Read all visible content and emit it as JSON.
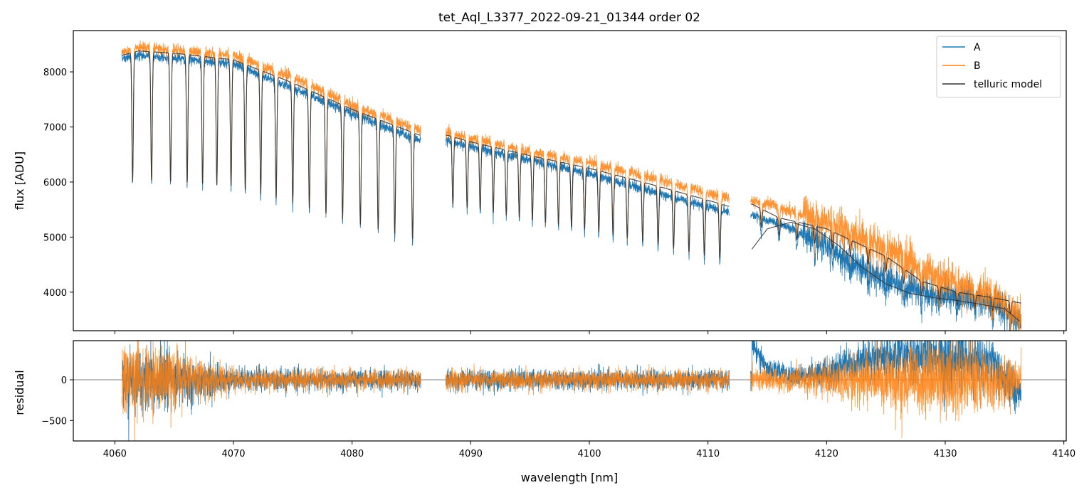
{
  "title": "tet_Aql_L3377_2022-09-21_01344  order 02",
  "colors": {
    "A": "#1f77b4",
    "B": "#ff7f0e",
    "model": "#333333",
    "zero_line": "#555555"
  },
  "legend": {
    "placement": "top-right",
    "entries": [
      "A",
      "B",
      "telluric model"
    ]
  },
  "chart_data": [
    {
      "panel": "top",
      "type": "line",
      "title": "tet_Aql_L3377_2022-09-21_01344  order 02",
      "xlabel": "",
      "ylabel": "flux [ADU]",
      "xlim": [
        4056.5,
        4140.2
      ],
      "ylim": [
        3300,
        8750
      ],
      "y_ticks": [
        4000,
        5000,
        6000,
        7000,
        8000
      ],
      "x_ticks": [
        4060,
        4070,
        4080,
        4090,
        4100,
        4110,
        4120,
        4130,
        4140
      ],
      "grid": false,
      "segments": [
        [
          4060.6,
          4085.8
        ],
        [
          4087.9,
          4111.8
        ],
        [
          4113.6,
          4136.4
        ]
      ],
      "continuum_A": {
        "x": [
          4060.6,
          4062,
          4065,
          4070,
          4075,
          4080,
          4085.7,
          4088,
          4090,
          4095,
          4100,
          4105,
          4110,
          4111.7,
          4113.7,
          4116,
          4118,
          4120,
          4122,
          4125,
          4128,
          4131,
          4134,
          4136.4
        ],
        "y": [
          8250,
          8300,
          8250,
          8150,
          7700,
          7250,
          6750,
          6750,
          6650,
          6400,
          6150,
          5850,
          5550,
          5450,
          5400,
          5250,
          5050,
          4850,
          4550,
          4250,
          4000,
          3900,
          3850,
          3450
        ]
      },
      "continuum_B": {
        "x": [
          4060.6,
          4062,
          4065,
          4070,
          4075,
          4080,
          4085.7,
          4088,
          4090,
          4095,
          4100,
          4105,
          4110,
          4111.7,
          4113.7,
          4116,
          4118,
          4120,
          4122,
          4125,
          4128,
          4131,
          4134,
          4136.4
        ],
        "y": [
          8350,
          8450,
          8400,
          8300,
          7900,
          7400,
          6950,
          6900,
          6800,
          6550,
          6350,
          6100,
          5800,
          5700,
          5650,
          5550,
          5400,
          5300,
          5100,
          4800,
          4400,
          4150,
          3950,
          3500
        ]
      },
      "model": {
        "x": [
          4060.6,
          4062,
          4065,
          4070,
          4075,
          4080,
          4085.7,
          4088,
          4090,
          4095,
          4100,
          4105,
          4110,
          4111.7,
          4113.7,
          4116,
          4118,
          4120,
          4122,
          4125,
          4128,
          4131,
          4134,
          4136.4
        ],
        "y": [
          8300,
          8380,
          8340,
          8220,
          7800,
          7320,
          6850,
          6850,
          6730,
          6480,
          6250,
          5970,
          5670,
          5560,
          5600,
          5350,
          5250,
          5150,
          4950,
          4650,
          4200,
          4000,
          3900,
          3800
        ]
      },
      "absorption_lines_nm": [
        4061.5,
        4063.1,
        4064.7,
        4066.1,
        4067.4,
        4068.6,
        4069.8,
        4071.0,
        4072.3,
        4073.6,
        4075.0,
        4076.4,
        4077.8,
        4079.2,
        4080.7,
        4082.2,
        4083.6,
        4085.1,
        4088.5,
        4089.7,
        4090.8,
        4091.9,
        4093.0,
        4094.1,
        4095.2,
        4096.3,
        4097.4,
        4098.5,
        4099.6,
        4100.8,
        4102.0,
        4103.2,
        4104.5,
        4105.8,
        4107.1,
        4108.4,
        4109.7,
        4111.0,
        4114.5,
        4116.0,
        4117.5,
        4119.0,
        4120.5,
        4122.0,
        4123.5,
        4125.0,
        4126.5,
        4128.0,
        4129.5,
        4131.0,
        4132.5,
        4134.0,
        4135.5
      ],
      "secondary_model": {
        "x": [
          4113.7,
          4115,
          4117,
          4119,
          4121,
          4123,
          4125,
          4127,
          4129,
          4131,
          4133,
          4135,
          4136.4
        ],
        "y": [
          4780,
          5150,
          5270,
          5150,
          4850,
          4450,
          4150,
          3980,
          3900,
          3850,
          3780,
          3700,
          3450
        ]
      }
    },
    {
      "panel": "bottom",
      "type": "line",
      "xlabel": "wavelength [nm]",
      "ylabel": "residual",
      "xlim": [
        4056.5,
        4140.2
      ],
      "ylim": [
        -750,
        480
      ],
      "y_ticks": [
        -500,
        0
      ],
      "x_ticks": [
        4060,
        4070,
        4080,
        4090,
        4100,
        4110,
        4120,
        4130,
        4140
      ],
      "zero_line": 0,
      "grid": false,
      "segments": [
        [
          4060.6,
          4085.8
        ],
        [
          4087.9,
          4111.8
        ],
        [
          4113.6,
          4136.4
        ]
      ],
      "noise_amplitude": {
        "x": [
          4060.6,
          4065,
          4070,
          4080,
          4090,
          4100,
          4110,
          4113.7,
          4118,
          4122,
          4126,
          4130,
          4134,
          4136.4
        ],
        "A": [
          350,
          300,
          130,
          110,
          110,
          110,
          110,
          120,
          130,
          200,
          280,
          350,
          280,
          200
        ],
        "B": [
          450,
          350,
          130,
          110,
          110,
          110,
          110,
          110,
          150,
          250,
          380,
          420,
          300,
          220
        ]
      },
      "A_offset": {
        "x": [
          4113.7,
          4115,
          4117,
          4119,
          4121,
          4123,
          4126,
          4130,
          4134,
          4136.4
        ],
        "y": [
          450,
          150,
          50,
          60,
          150,
          250,
          300,
          280,
          200,
          -200
        ]
      }
    }
  ]
}
